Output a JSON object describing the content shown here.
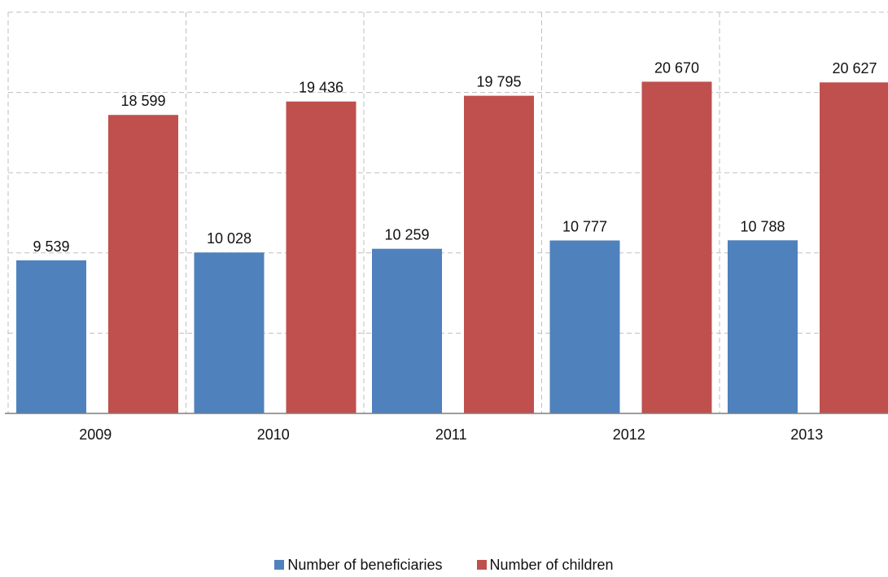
{
  "chart_data": {
    "type": "bar",
    "title": "",
    "xlabel": "",
    "ylabel": "",
    "categories": [
      "2009",
      "2010",
      "2011",
      "2012",
      "2013"
    ],
    "series": [
      {
        "name": "Number of beneficiaries",
        "color": "#4F81BD",
        "values": [
          9539,
          10028,
          10259,
          10777,
          10788
        ],
        "labels": [
          "9 539",
          "10 028",
          "10 259",
          "10 777",
          "10 788"
        ]
      },
      {
        "name": "Number of children",
        "color": "#C0504D",
        "values": [
          18599,
          19436,
          19795,
          20670,
          20627
        ],
        "labels": [
          "18 599",
          "19 436",
          "19 795",
          "20 670",
          "20 627"
        ]
      }
    ],
    "ylim": [
      0,
      25000
    ],
    "y_ticks": [
      0,
      5000,
      10000,
      15000,
      20000,
      25000
    ],
    "y_tick_labels_visible": false,
    "grid": true,
    "grid_style": "dashed",
    "legend_position": "bottom"
  }
}
